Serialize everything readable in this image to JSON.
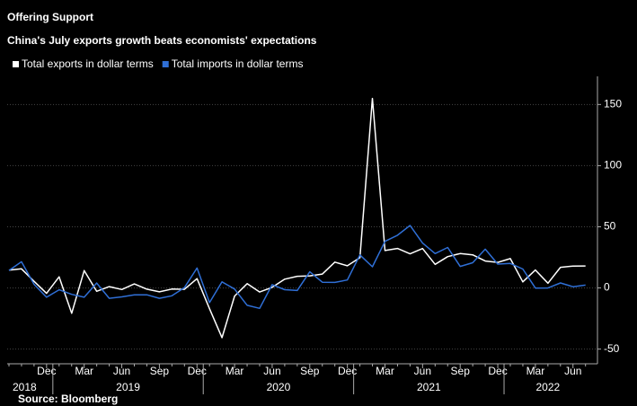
{
  "chart_data": {
    "type": "line",
    "title": "Offering Support",
    "subtitle": "China's July exports growth beats economists' expectations",
    "source": "Source: Bloomberg",
    "categories": [
      null,
      null,
      null,
      "Dec",
      null,
      null,
      "Mar",
      null,
      null,
      "Jun",
      null,
      null,
      "Sep",
      null,
      null,
      "Dec",
      null,
      null,
      "Mar",
      null,
      null,
      "Jun",
      null,
      null,
      "Sep",
      null,
      null,
      "Dec",
      null,
      null,
      "Mar",
      null,
      null,
      "Jun",
      null,
      null,
      "Sep",
      null,
      null,
      "Dec",
      null,
      null,
      "Mar",
      null,
      null,
      "Jun",
      null
    ],
    "years": [
      "2018",
      "2019",
      "2020",
      "2021",
      "2022"
    ],
    "series": [
      {
        "name": "Total exports in dollar terms",
        "color": "#ffffff",
        "values": [
          14.5,
          15.6,
          5.4,
          -4.4,
          9.1,
          -20.7,
          14.2,
          -2.7,
          1.1,
          -1.3,
          3.3,
          -1,
          -3.2,
          -0.9,
          -1.1,
          7.6,
          -17,
          -40.6,
          -6.6,
          3.5,
          -3.3,
          0.5,
          7.2,
          9.5,
          9.9,
          11.4,
          21.1,
          18.1,
          24.7,
          154.9,
          30.6,
          32.3,
          27.9,
          32.2,
          19.3,
          25.6,
          28.1,
          27.1,
          22,
          20.9,
          24,
          5,
          14.7,
          3.9,
          16.9,
          17.9,
          18
        ]
      },
      {
        "name": "Total imports in dollar terms",
        "color": "#2f6fd6",
        "values": [
          14.3,
          21.4,
          3,
          -7.6,
          -1.5,
          -5.2,
          -7.6,
          4,
          -8.5,
          -7.3,
          -5.6,
          -5.6,
          -8.5,
          -6.4,
          0.3,
          16.3,
          -12,
          5,
          -0.9,
          -14.2,
          -16.7,
          2.7,
          -1.4,
          -2.1,
          13.2,
          4.7,
          4.5,
          6.5,
          27,
          17.3,
          38.1,
          43.1,
          51.1,
          36.7,
          28.1,
          33.1,
          17.6,
          20.6,
          31.7,
          19.5,
          20,
          15.5,
          -0.1,
          0,
          4.1,
          1,
          2.3
        ]
      }
    ],
    "ylim": [
      -62,
      173
    ],
    "yticks": [
      -50,
      0,
      50,
      100,
      150
    ],
    "grid": true
  }
}
